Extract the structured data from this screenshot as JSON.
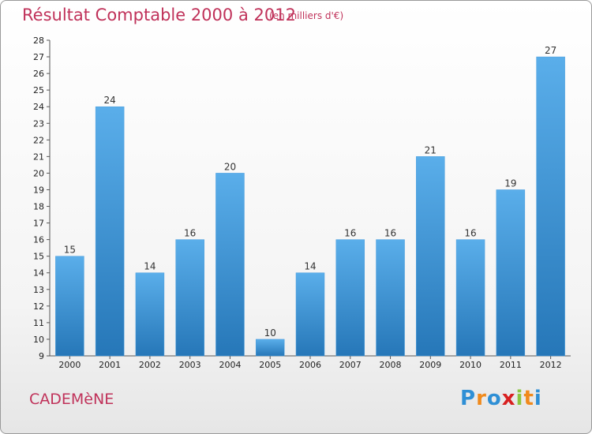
{
  "header": {
    "title": "Résultat Comptable 2000 à 2012",
    "subtitle": "(en milliers d'€)"
  },
  "footer": {
    "commune": "CADEMèNE",
    "logo": [
      "P",
      "r",
      "o",
      "x",
      "i",
      "t",
      "i"
    ]
  },
  "colors": {
    "title": "#c0325a",
    "bar_top": "#5aaeea",
    "bar_bottom": "#2677b8",
    "logo": [
      "#2f8fd5",
      "#f08a1c",
      "#2f8fd5",
      "#d82020",
      "#8cc63f",
      "#f08a1c",
      "#2f8fd5"
    ]
  },
  "chart_data": {
    "type": "bar",
    "categories": [
      "2000",
      "2001",
      "2002",
      "2003",
      "2004",
      "2005",
      "2006",
      "2007",
      "2008",
      "2009",
      "2010",
      "2011",
      "2012"
    ],
    "values": [
      15,
      24,
      14,
      16,
      20,
      10,
      14,
      16,
      16,
      21,
      16,
      19,
      27
    ],
    "ylim": [
      9,
      28
    ],
    "yticks": [
      9,
      10,
      11,
      12,
      13,
      14,
      15,
      16,
      17,
      18,
      19,
      20,
      21,
      22,
      23,
      24,
      25,
      26,
      27,
      28
    ],
    "grid": false
  }
}
